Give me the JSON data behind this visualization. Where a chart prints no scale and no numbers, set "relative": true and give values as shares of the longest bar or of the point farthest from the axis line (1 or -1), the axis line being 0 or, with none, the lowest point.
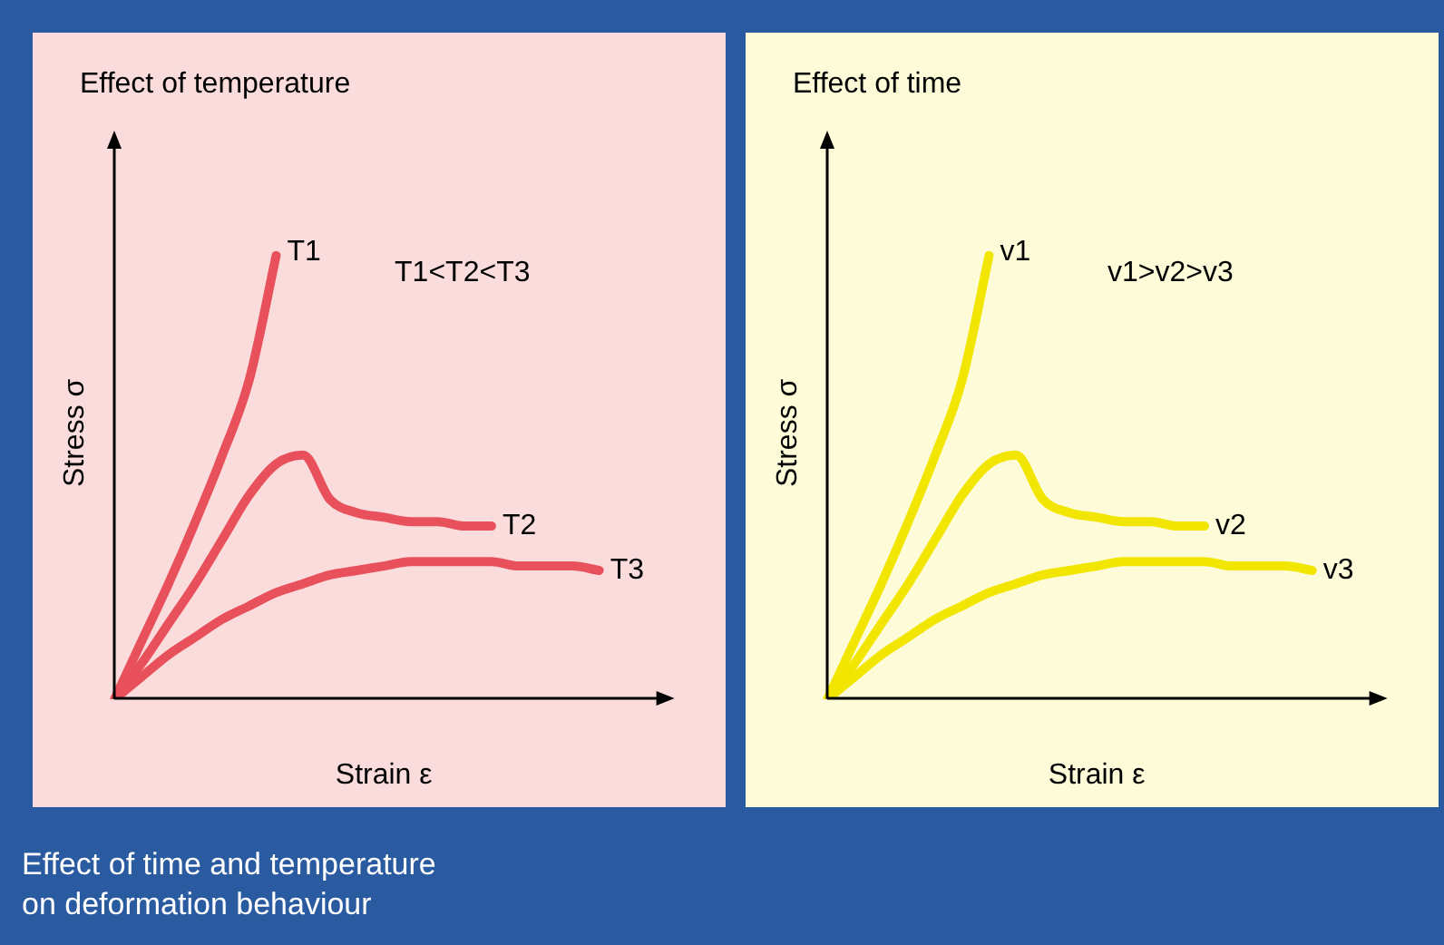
{
  "chart_data": [
    {
      "type": "line",
      "title": "Effect of temperature",
      "xlabel": "Strain ε",
      "ylabel": "Stress σ",
      "relative": true,
      "legend": false,
      "grid": false,
      "marker": "none",
      "line_style": "solid",
      "annotations": [
        "T1<T2<T3",
        "Effect of time and temperature on deformation behaviour"
      ],
      "categories": [
        null,
        null,
        null,
        null,
        null,
        null,
        null,
        null,
        null,
        null,
        null,
        null,
        null,
        null,
        null,
        null,
        null,
        null,
        null,
        null,
        null
      ],
      "series": [
        {
          "name": "T1",
          "color": "#e8505b",
          "values": [
            0,
            0.13,
            0.26,
            0.4,
            0.55,
            0.72,
            1,
            null,
            null,
            null,
            null,
            null,
            null,
            null,
            null,
            null,
            null,
            null,
            null,
            null,
            null
          ]
        },
        {
          "name": "T2",
          "color": "#e8505b",
          "values": [
            0,
            0.08,
            0.17,
            0.26,
            0.36,
            0.46,
            0.53,
            0.55,
            0.45,
            0.42,
            0.41,
            0.4,
            0.4,
            0.39,
            0.39,
            null,
            null,
            null,
            null,
            null,
            null
          ]
        },
        {
          "name": "T3",
          "color": "#e8505b",
          "values": [
            0,
            0.05,
            0.1,
            0.14,
            0.18,
            0.21,
            0.24,
            0.26,
            0.28,
            0.29,
            0.3,
            0.31,
            0.31,
            0.31,
            0.31,
            0.3,
            0.3,
            0.3,
            0.29,
            null,
            null
          ]
        }
      ]
    },
    {
      "type": "line",
      "title": "Effect of time",
      "xlabel": "Strain ε",
      "ylabel": "Stress σ",
      "relative": true,
      "legend": false,
      "grid": false,
      "marker": "none",
      "line_style": "solid",
      "annotations": [
        "v1>v2>v3"
      ],
      "categories": [
        null,
        null,
        null,
        null,
        null,
        null,
        null,
        null,
        null,
        null,
        null,
        null,
        null,
        null,
        null,
        null,
        null,
        null,
        null,
        null,
        null
      ],
      "series": [
        {
          "name": "v1",
          "color": "#f2e600",
          "values": [
            0,
            0.13,
            0.26,
            0.4,
            0.55,
            0.72,
            1,
            null,
            null,
            null,
            null,
            null,
            null,
            null,
            null,
            null,
            null,
            null,
            null,
            null,
            null
          ]
        },
        {
          "name": "v2",
          "color": "#f2e600",
          "values": [
            0,
            0.08,
            0.17,
            0.26,
            0.36,
            0.46,
            0.53,
            0.55,
            0.45,
            0.42,
            0.41,
            0.4,
            0.4,
            0.39,
            0.39,
            null,
            null,
            null,
            null,
            null,
            null
          ]
        },
        {
          "name": "v3",
          "color": "#f2e600",
          "values": [
            0,
            0.05,
            0.1,
            0.14,
            0.18,
            0.21,
            0.24,
            0.26,
            0.28,
            0.29,
            0.3,
            0.31,
            0.31,
            0.31,
            0.31,
            0.3,
            0.3,
            0.3,
            0.29,
            null,
            null
          ]
        }
      ]
    }
  ]
}
